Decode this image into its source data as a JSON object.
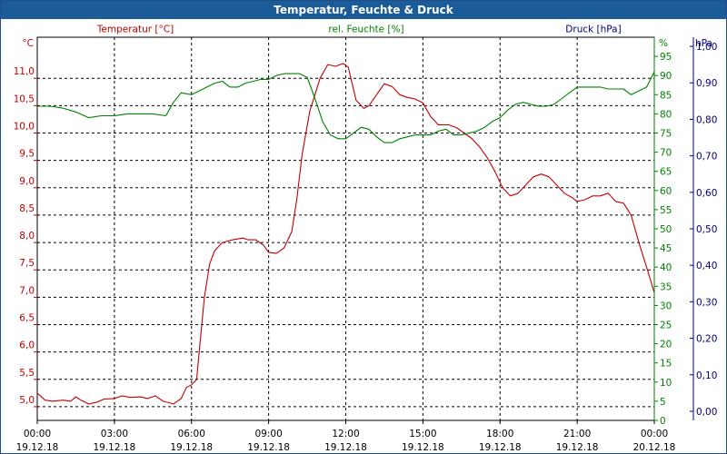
{
  "window": {
    "title": "Temperatur, Feuchte & Druck"
  },
  "colors": {
    "temperature": "#c00000",
    "humidity": "#008000",
    "pressure": "#000080",
    "grid": "#000000",
    "background": "#ffffff",
    "titlebar": "#1b5b97"
  },
  "chart_data": {
    "type": "line",
    "title": "Temperatur, Feuchte & Druck",
    "grid": true,
    "x_ticks": [
      {
        "time": "00:00",
        "date": "19.12.18"
      },
      {
        "time": "03:00",
        "date": "19.12.18"
      },
      {
        "time": "06:00",
        "date": "19.12.18"
      },
      {
        "time": "09:00",
        "date": "19.12.18"
      },
      {
        "time": "12:00",
        "date": "19.12.18"
      },
      {
        "time": "15:00",
        "date": "19.12.18"
      },
      {
        "time": "18:00",
        "date": "19.12.18"
      },
      {
        "time": "21:00",
        "date": "19.12.18"
      },
      {
        "time": "00:00",
        "date": "20.12.18"
      }
    ],
    "x_range_hours": [
      0,
      24
    ],
    "axes": {
      "temperature": {
        "label": "Temperatur [°C]",
        "unit": "°C",
        "range": [
          4.75,
          11.75
        ],
        "ticks": [
          "5,0",
          "5,5",
          "6,0",
          "6,5",
          "7,0",
          "7,5",
          "8,0",
          "8,5",
          "9,0",
          "9,5",
          "10,0",
          "10,5",
          "11,0"
        ],
        "tick_values": [
          5.0,
          5.5,
          6.0,
          6.5,
          7.0,
          7.5,
          8.0,
          8.5,
          9.0,
          9.5,
          10.0,
          10.5,
          11.0
        ]
      },
      "humidity": {
        "label": "rel. Feuchte [%]",
        "unit": "%",
        "range": [
          0,
          100
        ],
        "ticks": [
          "0",
          "5",
          "10",
          "15",
          "20",
          "25",
          "30",
          "35",
          "40",
          "45",
          "50",
          "55",
          "60",
          "65",
          "70",
          "75",
          "80",
          "85",
          "90",
          "95"
        ],
        "tick_values": [
          0,
          5,
          10,
          15,
          20,
          25,
          30,
          35,
          40,
          45,
          50,
          55,
          60,
          65,
          70,
          75,
          80,
          85,
          90,
          95
        ]
      },
      "pressure": {
        "label": "Druck [hPa]",
        "unit": "hPa",
        "range": [
          -0.025,
          1.025
        ],
        "ticks": [
          "0,00",
          "0,10",
          "0,20",
          "0,30",
          "0,40",
          "0,50",
          "0,60",
          "0,70",
          "0,80",
          "0,90",
          "1,00"
        ],
        "tick_values": [
          0.0,
          0.1,
          0.2,
          0.3,
          0.4,
          0.5,
          0.6,
          0.7,
          0.8,
          0.9,
          1.0
        ]
      }
    },
    "series": [
      {
        "name": "Temperatur [°C]",
        "axis": "temperature",
        "x": [
          0,
          0.3,
          0.6,
          1.0,
          1.3,
          1.5,
          1.7,
          2.0,
          2.3,
          2.6,
          3.0,
          3.3,
          3.6,
          4.0,
          4.3,
          4.6,
          4.9,
          5.3,
          5.6,
          5.8,
          6.0,
          6.2,
          6.3,
          6.5,
          6.7,
          6.9,
          7.2,
          7.6,
          8.0,
          8.2,
          8.5,
          8.8,
          9.0,
          9.3,
          9.6,
          9.9,
          10.1,
          10.3,
          10.6,
          11.0,
          11.3,
          11.6,
          11.9,
          12.1,
          12.4,
          12.7,
          12.9,
          13.2,
          13.5,
          13.8,
          14.1,
          14.4,
          14.7,
          15.0,
          15.3,
          15.6,
          16.0,
          16.3,
          16.6,
          16.9,
          17.2,
          17.5,
          17.8,
          18.1,
          18.4,
          18.7,
          19.0,
          19.3,
          19.6,
          19.9,
          20.2,
          20.5,
          20.8,
          21.0,
          21.3,
          21.6,
          21.9,
          22.2,
          22.5,
          22.8,
          23.1,
          23.4,
          23.7,
          24.0
        ],
        "y": [
          5.25,
          5.12,
          5.1,
          5.12,
          5.1,
          5.18,
          5.12,
          5.05,
          5.08,
          5.14,
          5.15,
          5.2,
          5.17,
          5.18,
          5.15,
          5.2,
          5.1,
          5.05,
          5.15,
          5.35,
          5.4,
          5.5,
          6.0,
          7.0,
          7.6,
          7.85,
          8.0,
          8.05,
          8.08,
          8.05,
          8.05,
          7.95,
          7.82,
          7.8,
          7.9,
          8.2,
          8.8,
          9.6,
          10.4,
          11.0,
          11.25,
          11.22,
          11.27,
          11.2,
          10.6,
          10.45,
          10.5,
          10.7,
          10.9,
          10.85,
          10.7,
          10.65,
          10.62,
          10.55,
          10.3,
          10.15,
          10.15,
          10.1,
          10.0,
          9.9,
          9.75,
          9.55,
          9.3,
          9.0,
          8.85,
          8.9,
          9.05,
          9.2,
          9.25,
          9.2,
          9.05,
          8.9,
          8.82,
          8.75,
          8.78,
          8.85,
          8.85,
          8.9,
          8.75,
          8.72,
          8.5,
          8.0,
          7.55,
          7.08
        ]
      },
      {
        "name": "rel. Feuchte [%]",
        "axis": "humidity",
        "x": [
          0,
          0.5,
          1.0,
          1.5,
          2.0,
          2.5,
          3.0,
          3.5,
          4.0,
          4.5,
          5.0,
          5.3,
          5.6,
          6.0,
          6.3,
          6.6,
          6.9,
          7.2,
          7.5,
          7.8,
          8.1,
          8.4,
          8.7,
          9.0,
          9.3,
          9.6,
          9.9,
          10.2,
          10.5,
          10.8,
          11.1,
          11.4,
          11.7,
          12.0,
          12.3,
          12.6,
          12.9,
          13.2,
          13.5,
          13.8,
          14.1,
          14.4,
          14.7,
          15.0,
          15.3,
          15.6,
          15.9,
          16.2,
          16.5,
          16.8,
          17.1,
          17.4,
          17.7,
          18.0,
          18.3,
          18.6,
          18.9,
          19.2,
          19.5,
          19.8,
          20.1,
          20.4,
          20.7,
          21.0,
          21.3,
          21.6,
          21.9,
          22.2,
          22.5,
          22.8,
          23.1,
          23.4,
          23.7,
          24.0
        ],
        "y": [
          82,
          82,
          81.5,
          80.5,
          79,
          79.5,
          79.5,
          80,
          80,
          80,
          79.5,
          83,
          85.5,
          85,
          86,
          87,
          88,
          88.5,
          87,
          87,
          88,
          88.5,
          89,
          89,
          90,
          90.5,
          90.5,
          90.5,
          89.5,
          84,
          78,
          74.5,
          73.5,
          73.5,
          75,
          76.5,
          76,
          74,
          72.5,
          72.5,
          73.5,
          74,
          74.5,
          74.5,
          74.5,
          75.5,
          76,
          74.5,
          74.5,
          75,
          75.5,
          76.5,
          78,
          79,
          81,
          82.5,
          83,
          82.5,
          82,
          82,
          82.5,
          84,
          85.5,
          87,
          87,
          87,
          87,
          86.5,
          86.5,
          86.5,
          85,
          86,
          87,
          91
        ]
      },
      {
        "name": "Druck [hPa]",
        "axis": "pressure",
        "x": [],
        "y": []
      }
    ]
  }
}
